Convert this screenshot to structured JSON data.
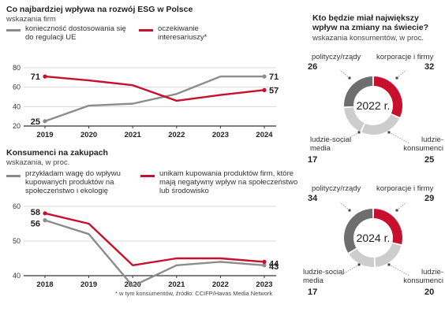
{
  "colors": {
    "gray": "#8c8c8c",
    "red": "#c8102e",
    "lightgray": "#cdcdcd",
    "darkgray": "#6e6e6e"
  },
  "footnote": "* w tym konsumentów, źródło: CCIFP/Havas Media Network",
  "chart_data": [
    {
      "type": "line",
      "title": "Co najbardziej wpływa na rozwój ESG w Polsce",
      "subtitle": "wskazania firm",
      "x": [
        "2019",
        "2020",
        "2021",
        "2022",
        "2023",
        "2024"
      ],
      "ylim": [
        20,
        80
      ],
      "yticks": [
        20,
        40,
        60,
        80
      ],
      "series": [
        {
          "name": "konieczność dostosowania się do regulacji UE",
          "color": "gray",
          "values": [
            25,
            41,
            43,
            53,
            71,
            71
          ],
          "start_label": "25",
          "end_label": "71"
        },
        {
          "name": "oczekiwanie interesariuszy*",
          "color": "red",
          "values": [
            71,
            67,
            62,
            46,
            52,
            57
          ],
          "start_label": "71",
          "end_label": "57"
        }
      ]
    },
    {
      "type": "line",
      "title": "Konsumenci na zakupach",
      "subtitle": "wskazania, w proc.",
      "x": [
        "2018",
        "2019",
        "2020",
        "2021",
        "2022",
        "2023"
      ],
      "ylim": [
        40,
        60
      ],
      "yticks": [
        40,
        50,
        60
      ],
      "series": [
        {
          "name": "przykładam wagę do wpływu kupowanych produktów na społeczeństwo i ekologię",
          "color": "gray",
          "values": [
            56,
            52,
            37,
            43,
            44,
            43
          ],
          "start_label": "56",
          "end_label": "43"
        },
        {
          "name": "unikam kupowania produktów firm, które mają negatywny wpływ na społeczeństwo lub środowisko",
          "color": "red",
          "values": [
            58,
            55,
            43,
            45,
            45,
            44
          ],
          "start_label": "58",
          "end_label": "44"
        }
      ]
    },
    {
      "type": "pie",
      "title": "Kto będzie miał największy wpływ na zmiany na świecie?",
      "subtitle": "wskazania konsumentów, w proc.",
      "center_label": "2022 r.",
      "slices": [
        {
          "label": "korporacje i firmy",
          "value": 32,
          "color": "red"
        },
        {
          "label": "ludzie-konsumenci",
          "value": 25,
          "color": "lightgray"
        },
        {
          "label": "ludzie-social media",
          "value": 17,
          "color": "lightgray"
        },
        {
          "label": "polityczy/rządy",
          "value": 26,
          "color": "darkgray"
        }
      ]
    },
    {
      "type": "pie",
      "center_label": "2024 r.",
      "slices": [
        {
          "label": "korporacje i firmy",
          "value": 29,
          "color": "red"
        },
        {
          "label": "ludzie-konsumenci",
          "value": 20,
          "color": "lightgray"
        },
        {
          "label": "ludzie-social media",
          "value": 17,
          "color": "lightgray"
        },
        {
          "label": "polityczy/rządy",
          "value": 34,
          "color": "darkgray"
        }
      ]
    }
  ]
}
